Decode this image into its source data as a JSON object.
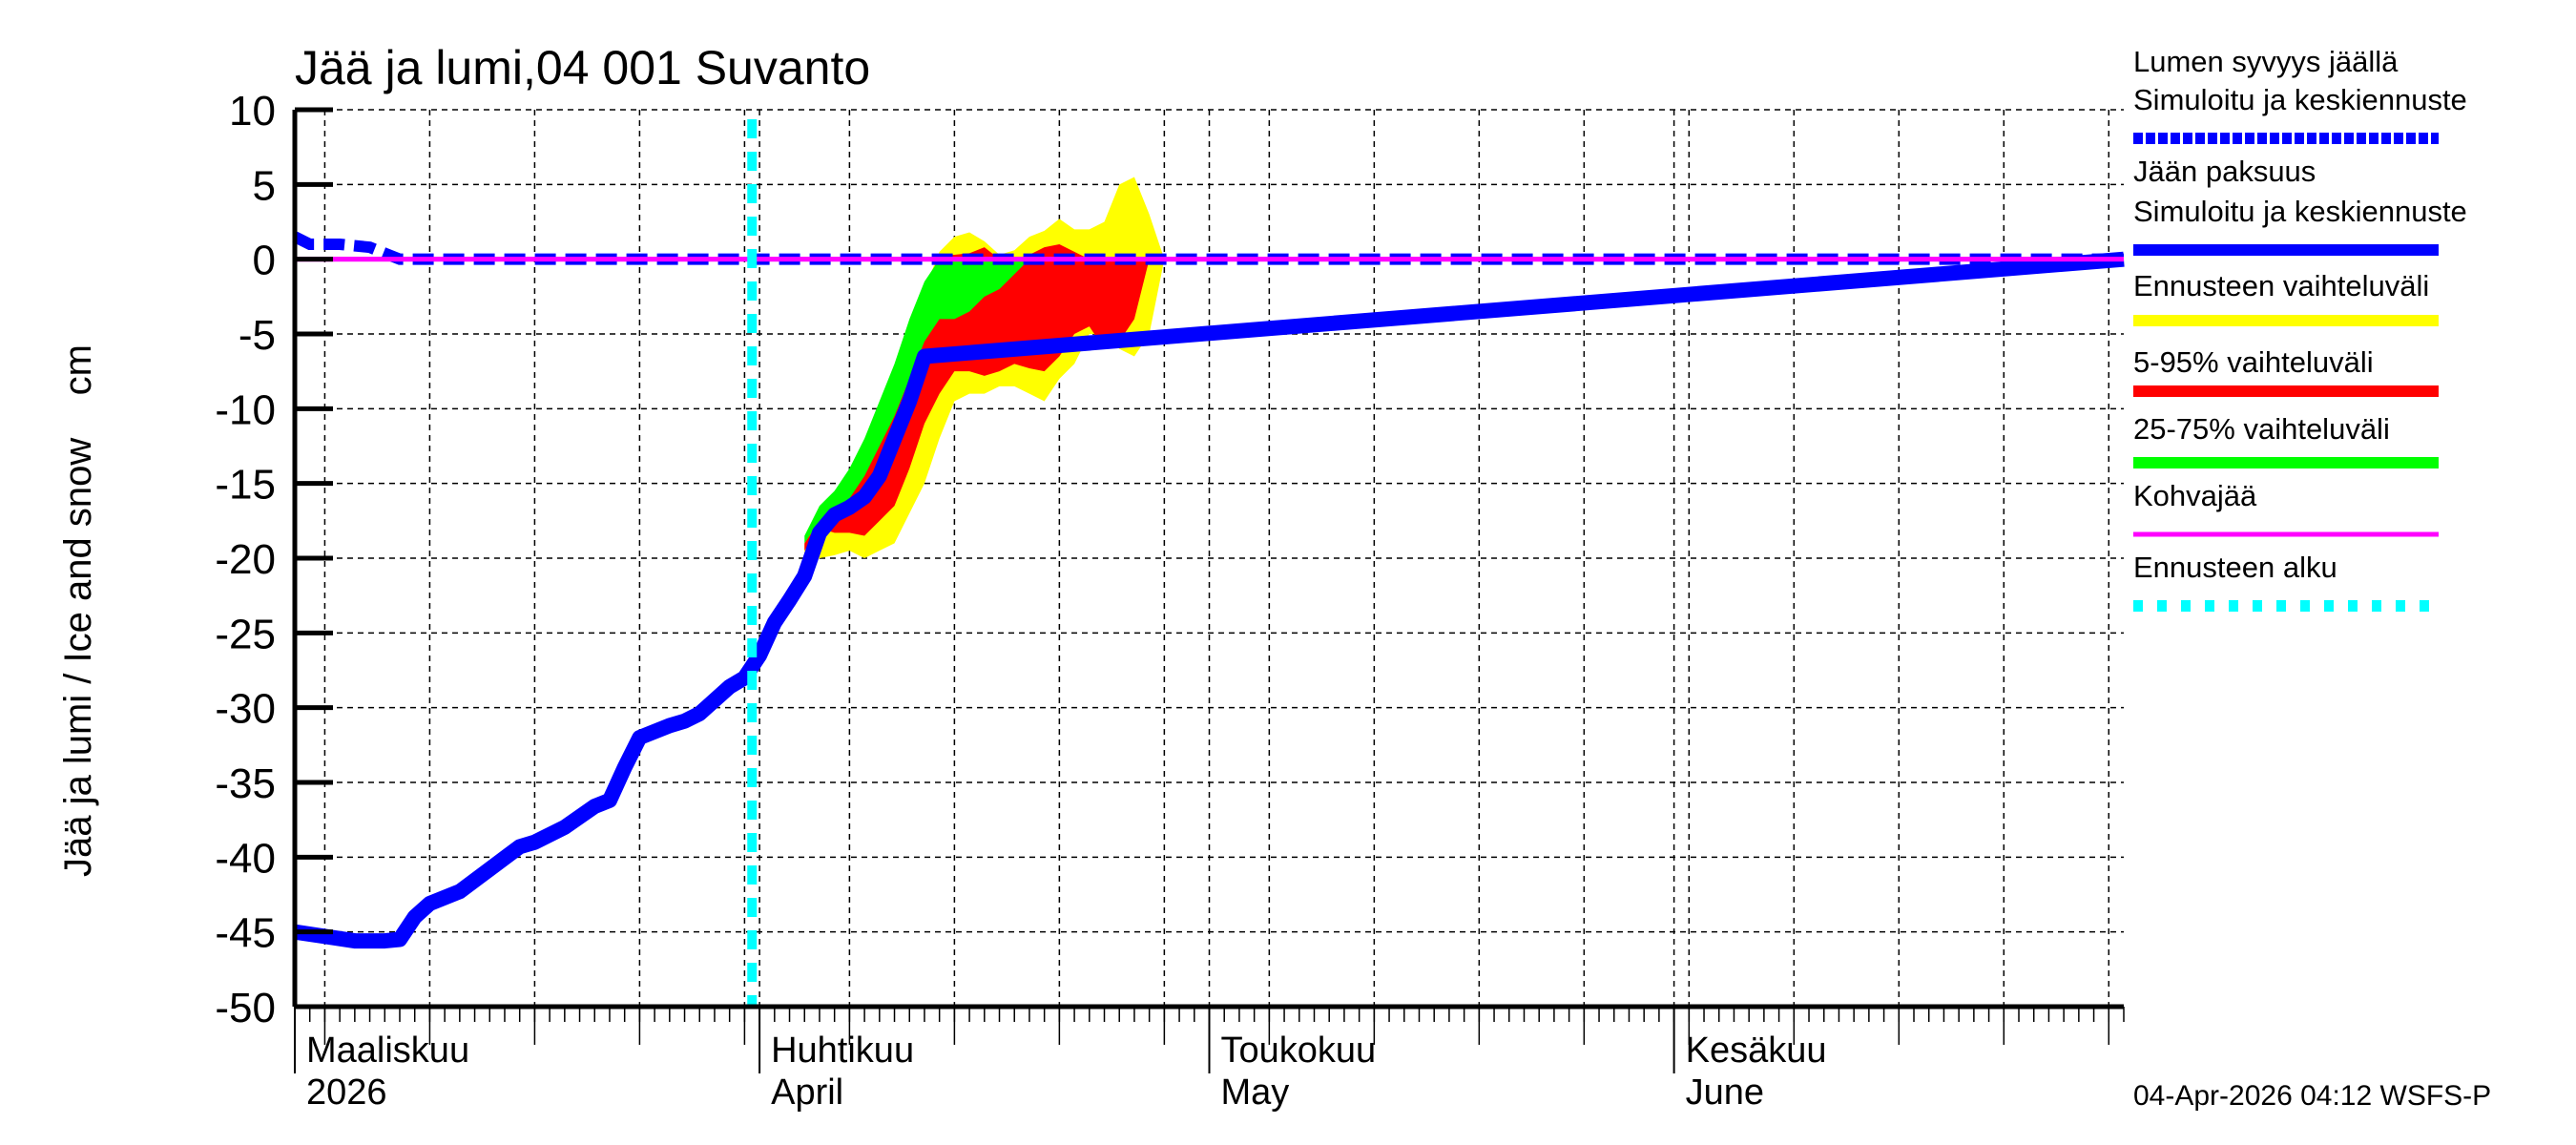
{
  "title": "Jää ja lumi,04 001 Suvanto",
  "ylabel": "Jää ja lumi / Ice and snow    cm",
  "footer": "04-Apr-2026 04:12 WSFS-P",
  "x_months": [
    {
      "fi": "Maaliskuu",
      "en": "2026",
      "day": 0
    },
    {
      "fi": "Huhtikuu",
      "en": "April",
      "day": 31
    },
    {
      "fi": "Toukokuu",
      "en": "May",
      "day": 61
    },
    {
      "fi": "Kesäkuu",
      "en": "June",
      "day": 92
    }
  ],
  "legend": {
    "items": [
      {
        "line1": "Lumen syvyys jäällä",
        "line2": "Simuloitu ja keskiennuste",
        "color": "#0000ff",
        "style": "dashed"
      },
      {
        "line1": "Jään paksuus",
        "line2": "Simuloitu ja keskiennuste",
        "color": "#0000ff",
        "style": "solid"
      },
      {
        "line1": "Ennusteen vaihteluväli",
        "line2": "",
        "color": "#ffff00",
        "style": "solid"
      },
      {
        "line1": "5-95% vaihteluväli",
        "line2": "",
        "color": "#ff0000",
        "style": "solid"
      },
      {
        "line1": "25-75% vaihteluväli",
        "line2": "",
        "color": "#00ff00",
        "style": "solid"
      },
      {
        "line1": "Kohvajää",
        "line2": "",
        "color": "#ff00ff",
        "style": "thin"
      },
      {
        "line1": "Ennusteen alku",
        "line2": "",
        "color": "#00ffff",
        "style": "dotted"
      }
    ]
  },
  "chart_data": {
    "type": "line",
    "title": "Jää ja lumi,04 001 Suvanto",
    "xlabel": "",
    "ylabel": "Jää ja lumi / Ice and snow cm",
    "ylim": [
      -50,
      10
    ],
    "yticks": [
      10,
      5,
      0,
      -5,
      -10,
      -15,
      -20,
      -25,
      -30,
      -35,
      -40,
      -45,
      -50
    ],
    "x_unit": "days since 2026-03-01",
    "xlim": [
      0,
      122
    ],
    "forecast_start_day": 30.5,
    "grid": true,
    "legend_position": "right",
    "series": [
      {
        "name": "Jään paksuus (Simuloitu ja keskiennuste)",
        "color": "#0000ff",
        "x": [
          0,
          2,
          4,
          6,
          7,
          8,
          9,
          11,
          13,
          15,
          16,
          18,
          20,
          21,
          22,
          23,
          25,
          26,
          27,
          28,
          29,
          30,
          31,
          32,
          33,
          34,
          35,
          36,
          37,
          38,
          39,
          40,
          41,
          42,
          122
        ],
        "values": [
          -45,
          -45.3,
          -45.6,
          -45.6,
          -45.5,
          -44,
          -43.1,
          -42.3,
          -40.8,
          -39.3,
          -39,
          -38,
          -36.6,
          -36.2,
          -34,
          -32,
          -31.2,
          -30.9,
          -30.4,
          -29.5,
          -28.6,
          -28,
          -26.5,
          -24.3,
          -22.8,
          -21.2,
          -18.3,
          -17.1,
          -16.6,
          -15.9,
          -14.5,
          -12,
          -9.5,
          -6.5,
          0
        ]
      },
      {
        "name": "Lumen syvyys jäällä (Simuloitu ja keskiennuste)",
        "color": "#0000ff",
        "style": "dashed",
        "x": [
          0,
          1,
          3,
          5,
          6,
          7,
          122
        ],
        "values": [
          1.5,
          1,
          1,
          0.8,
          0.4,
          0,
          0
        ]
      },
      {
        "name": "Kohvajää",
        "color": "#ff00ff",
        "x": [
          0,
          122
        ],
        "values": [
          0,
          0
        ]
      }
    ],
    "bands": [
      {
        "name": "Ennusteen vaihteluväli",
        "color": "#ffff00",
        "x": [
          34,
          35,
          36,
          37,
          38,
          39,
          40,
          41,
          42,
          43,
          44,
          45,
          46,
          47,
          48,
          49,
          50,
          51,
          52,
          53,
          54,
          55,
          56,
          57,
          58
        ],
        "upper": [
          -19,
          -17,
          -16,
          -15,
          -13,
          -11,
          -8,
          -5,
          -2,
          0.5,
          1.5,
          1.8,
          1.2,
          0.3,
          0.6,
          1.5,
          1.9,
          2.7,
          2,
          2,
          2.5,
          5,
          5.5,
          3,
          0
        ],
        "lower": [
          -21,
          -20,
          -19.8,
          -19.5,
          -20,
          -19.5,
          -19,
          -17,
          -15,
          -12,
          -9.5,
          -9,
          -9,
          -8.5,
          -8.5,
          -9,
          -9.5,
          -8,
          -7,
          -5,
          -5,
          -6,
          -6.5,
          -5,
          0
        ]
      },
      {
        "name": "5-95% vaihteluväli",
        "color": "#ff0000",
        "x": [
          34,
          35,
          36,
          37,
          38,
          39,
          40,
          41,
          42,
          43,
          44,
          45,
          46,
          47,
          48,
          49,
          50,
          51,
          52,
          53,
          54,
          55,
          56,
          57
        ],
        "upper": [
          -19,
          -17.5,
          -16,
          -14.5,
          -12.5,
          -10,
          -8,
          -5.5,
          -2,
          0.2,
          0.3,
          0.4,
          0.8,
          0,
          0,
          0.3,
          0.8,
          1,
          0.5,
          0,
          0,
          0,
          0,
          0
        ],
        "lower": [
          -19.5,
          -18,
          -18.3,
          -18.3,
          -18.5,
          -17.5,
          -16.5,
          -14,
          -11,
          -9,
          -7.5,
          -7.5,
          -7.8,
          -7.5,
          -7,
          -7.3,
          -7.5,
          -6.5,
          -5,
          -4.5,
          -6,
          -5.5,
          -4,
          0
        ]
      },
      {
        "name": "25-75% vaihteluväli",
        "color": "#00ff00",
        "x": [
          34,
          35,
          36,
          37,
          38,
          39,
          40,
          41,
          42,
          43,
          44,
          45,
          46,
          47,
          48,
          49
        ],
        "upper": [
          -18.5,
          -16.5,
          -15.5,
          -14,
          -12,
          -9.5,
          -7,
          -4,
          -1.5,
          0,
          0,
          0,
          0,
          0,
          0,
          0
        ],
        "lower": [
          -19,
          -17.5,
          -17,
          -16,
          -14.5,
          -12.5,
          -10.5,
          -8,
          -5.5,
          -4,
          -4,
          -3.5,
          -2.5,
          -2,
          -1,
          0
        ]
      }
    ]
  }
}
